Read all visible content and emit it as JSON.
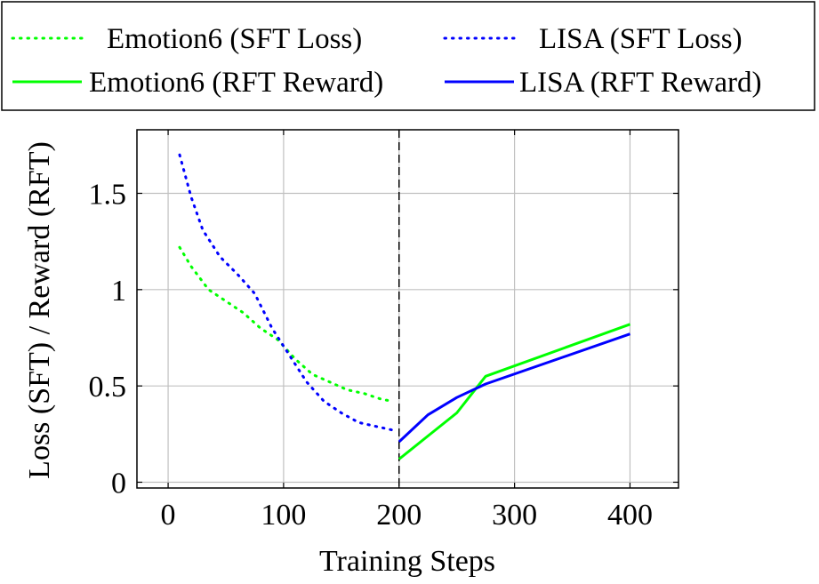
{
  "chart_data": {
    "type": "line",
    "xlabel": "Training Steps",
    "ylabel": "Loss (SFT) / Reward (RFT)",
    "xlim": [
      -27,
      442
    ],
    "ylim": [
      -0.03,
      1.83
    ],
    "xticks": [
      0,
      100,
      200,
      300,
      400
    ],
    "yticks": [
      0,
      0.5,
      1,
      1.5
    ],
    "xtick_labels": [
      "0",
      "100",
      "200",
      "300",
      "400"
    ],
    "ytick_labels": [
      "0",
      "0.5",
      "1",
      "1.5"
    ],
    "grid": true,
    "legend_position": "top",
    "vertical_marker_x": 200,
    "series": [
      {
        "name": "Emotion6 (SFT Loss)",
        "color": "#00ff00",
        "style": "dotted",
        "x": [
          10,
          20,
          35,
          50,
          65,
          80,
          95,
          110,
          125,
          140,
          155,
          170,
          185,
          195
        ],
        "y": [
          1.22,
          1.12,
          1.0,
          0.94,
          0.88,
          0.8,
          0.74,
          0.64,
          0.56,
          0.52,
          0.48,
          0.46,
          0.43,
          0.42
        ]
      },
      {
        "name": "LISA (SFT Loss)",
        "color": "#0000ff",
        "style": "dotted",
        "x": [
          10,
          20,
          30,
          45,
          60,
          75,
          90,
          105,
          120,
          135,
          150,
          165,
          180,
          195
        ],
        "y": [
          1.7,
          1.48,
          1.31,
          1.17,
          1.08,
          0.98,
          0.8,
          0.66,
          0.52,
          0.42,
          0.36,
          0.31,
          0.29,
          0.27
        ]
      },
      {
        "name": "Emotion6 (RFT Reward)",
        "color": "#00ff00",
        "style": "solid",
        "x": [
          200,
          225,
          250,
          275,
          400
        ],
        "y": [
          0.12,
          0.24,
          0.36,
          0.55,
          0.82
        ]
      },
      {
        "name": "LISA (RFT Reward)",
        "color": "#0000ff",
        "style": "solid",
        "x": [
          200,
          225,
          250,
          275,
          400
        ],
        "y": [
          0.21,
          0.35,
          0.44,
          0.51,
          0.77
        ]
      }
    ]
  }
}
